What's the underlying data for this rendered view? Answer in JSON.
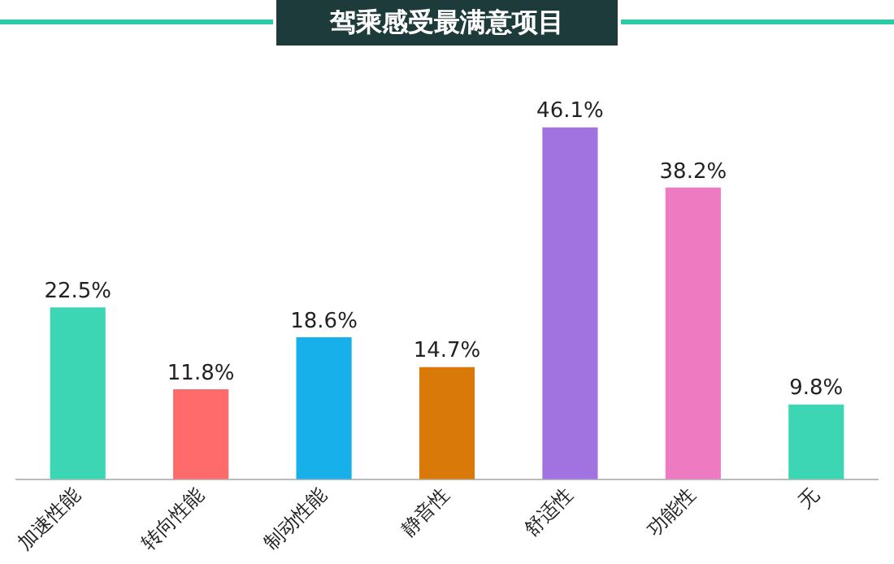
{
  "chart_data": {
    "type": "bar",
    "title": "驾乘感受最满意项目",
    "categories": [
      "加速性能",
      "转向性能",
      "制动性能",
      "静音性",
      "舒适性",
      "功能性",
      "无"
    ],
    "values": [
      22.5,
      11.8,
      18.6,
      14.7,
      46.1,
      38.2,
      9.8
    ],
    "colors": [
      "#3dd6b5",
      "#ff6b6b",
      "#17b0ea",
      "#d9790a",
      "#a173e0",
      "#ee7bc2",
      "#3dd6b5"
    ],
    "value_labels": [
      "22.5%",
      "11.8%",
      "18.6%",
      "14.7%",
      "46.1%",
      "38.2%",
      "9.8%"
    ],
    "grid": false,
    "legend": false
  }
}
